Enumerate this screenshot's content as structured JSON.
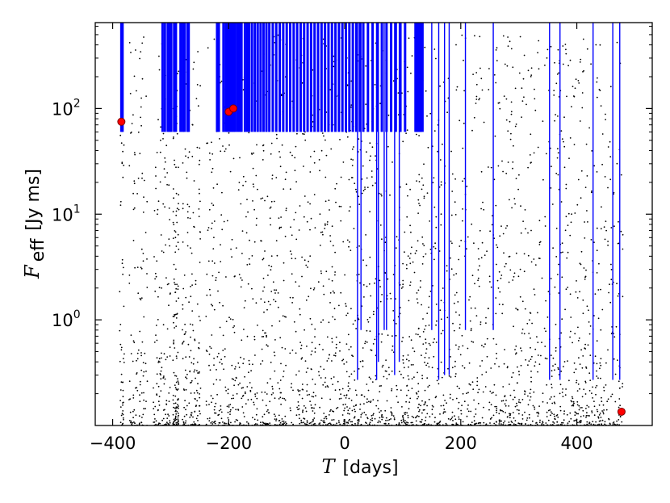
{
  "chart_data": {
    "type": "scatter",
    "title": "",
    "xlabel": {
      "symbol": "T",
      "unit": "[days]"
    },
    "ylabel": {
      "symbol": "F",
      "subscript": "eff",
      "unit": "[Jy ms]"
    },
    "xlim": [
      -430,
      530
    ],
    "ylim": [
      0.1,
      650
    ],
    "yscale": "log",
    "grid": false,
    "x_ticks": [
      {
        "value": -400,
        "label": "−400"
      },
      {
        "value": -200,
        "label": "−200"
      },
      {
        "value": 0,
        "label": "0"
      },
      {
        "value": 200,
        "label": "200"
      },
      {
        "value": 400,
        "label": "400"
      }
    ],
    "y_ticks": [
      {
        "value": 1,
        "base": "10",
        "exp": "0"
      },
      {
        "value": 10,
        "base": "10",
        "exp": "1"
      },
      {
        "value": 100,
        "base": "10",
        "exp": "2"
      }
    ],
    "colors": {
      "points": "#000000",
      "lines": "#0000ff",
      "highlight": "#ff0000",
      "highlight_edge": "#7a0000"
    },
    "series": [
      {
        "kind": "vertical-lines-upper",
        "color": "#0000ff",
        "from_y": 60,
        "to_y": 650,
        "x": [
          -385,
          -383,
          -314,
          -310,
          -305,
          -302,
          -299,
          -294,
          -291,
          -283,
          -279,
          -276,
          -271,
          -269,
          -220,
          -217,
          -209,
          -205,
          -202,
          -200,
          -198,
          -195,
          -192,
          -189,
          -185,
          -181,
          -178,
          -172,
          -168,
          -165,
          -160,
          -155,
          -150,
          -145,
          -140,
          -135,
          -130,
          -124,
          -118,
          -112,
          -106,
          -100,
          -94,
          -88,
          -82,
          -76,
          -70,
          -64,
          -58,
          -52,
          -46,
          -40,
          -34,
          -28,
          -22,
          -16,
          -10,
          -4,
          2,
          8,
          14,
          20,
          26,
          32,
          40,
          48,
          56,
          64,
          72,
          80,
          88,
          96,
          104,
          122,
          124,
          126,
          128,
          130,
          131,
          134
        ]
      },
      {
        "kind": "vertical-lines-lower",
        "color": "#0000ff",
        "lines": [
          {
            "x": 22,
            "y_low": 0.27
          },
          {
            "x": 28,
            "y_low": 0.8
          },
          {
            "x": 55,
            "y_low": 0.27
          },
          {
            "x": 58,
            "y_low": 0.4
          },
          {
            "x": 68,
            "y_low": 0.8
          },
          {
            "x": 72,
            "y_low": 0.8
          },
          {
            "x": 86,
            "y_low": 0.3
          },
          {
            "x": 94,
            "y_low": 0.4
          },
          {
            "x": 150,
            "y_low": 0.8
          },
          {
            "x": 162,
            "y_low": 0.27
          },
          {
            "x": 172,
            "y_low": 0.3
          },
          {
            "x": 180,
            "y_low": 0.3
          },
          {
            "x": 208,
            "y_low": 0.8
          },
          {
            "x": 256,
            "y_low": 0.8
          },
          {
            "x": 353,
            "y_low": 0.27
          },
          {
            "x": 371,
            "y_low": 0.27
          },
          {
            "x": 428,
            "y_low": 0.27
          },
          {
            "x": 462,
            "y_low": 0.27
          },
          {
            "x": 474,
            "y_low": 0.27
          }
        ]
      },
      {
        "kind": "highlight-points",
        "color": "#ff0000",
        "points": [
          {
            "x": -385,
            "y": 75
          },
          {
            "x": -200,
            "y": 93
          },
          {
            "x": -192,
            "y": 100
          },
          {
            "x": 477,
            "y": 0.135
          }
        ]
      },
      {
        "kind": "dense-scatter",
        "color": "#000000",
        "y_range": [
          0.1,
          500
        ],
        "clusters": [
          [
            -388,
            -380,
            0.15
          ],
          [
            -372,
            -340,
            0.3
          ],
          [
            -330,
            -300,
            0.4
          ],
          [
            -296,
            -286,
            1.2
          ],
          [
            -280,
            -248,
            0.5
          ],
          [
            -240,
            -150,
            0.35
          ],
          [
            -145,
            -100,
            0.4
          ],
          [
            -95,
            -50,
            0.35
          ],
          [
            -45,
            0,
            0.35
          ],
          [
            0,
            40,
            0.4
          ],
          [
            40,
            100,
            0.3
          ],
          [
            100,
            140,
            0.45
          ],
          [
            140,
            200,
            0.3
          ],
          [
            200,
            260,
            0.25
          ],
          [
            260,
            300,
            0.35
          ],
          [
            300,
            360,
            0.3
          ],
          [
            360,
            420,
            0.4
          ],
          [
            420,
            480,
            0.3
          ]
        ]
      }
    ]
  }
}
